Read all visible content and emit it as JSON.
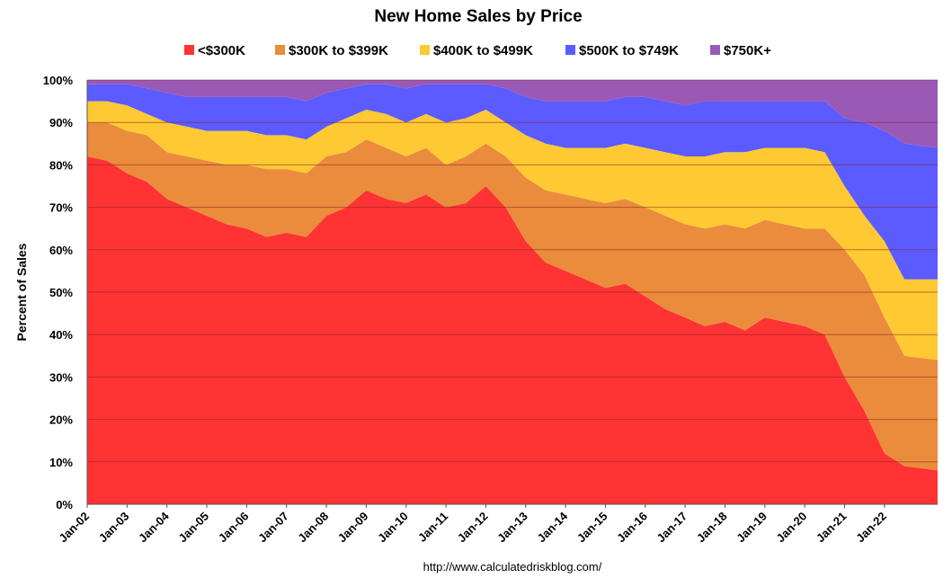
{
  "chart_data": {
    "type": "area",
    "stacked": true,
    "percent": true,
    "title": "New Home Sales by Price",
    "ylabel": "Percent of Sales",
    "xlabel": "",
    "source": "http://www.calculatedriskblog.com/",
    "ylim": [
      0,
      100
    ],
    "yticks": [
      "0%",
      "10%",
      "20%",
      "30%",
      "40%",
      "50%",
      "60%",
      "70%",
      "80%",
      "90%",
      "100%"
    ],
    "xtick_labels": [
      "Jan-02",
      "Jan-03",
      "Jan-04",
      "Jan-05",
      "Jan-06",
      "Jan-07",
      "Jan-08",
      "Jan-09",
      "Jan-10",
      "Jan-11",
      "Jan-12",
      "Jan-13",
      "Jan-14",
      "Jan-15",
      "Jan-16",
      "Jan-17",
      "Jan-18",
      "Jan-19",
      "Jan-20",
      "Jan-21",
      "Jan-22"
    ],
    "grid": true,
    "legend_position": "top",
    "x": [
      "Jan-02",
      "Jul-02",
      "Jan-03",
      "Jul-03",
      "Jan-04",
      "Jul-04",
      "Jan-05",
      "Jul-05",
      "Jan-06",
      "Jul-06",
      "Jan-07",
      "Jul-07",
      "Jan-08",
      "Jul-08",
      "Jan-09",
      "Jul-09",
      "Jan-10",
      "Jul-10",
      "Jan-11",
      "Jul-11",
      "Jan-12",
      "Jul-12",
      "Jan-13",
      "Jul-13",
      "Jan-14",
      "Jul-14",
      "Jan-15",
      "Jul-15",
      "Jan-16",
      "Jul-16",
      "Jan-17",
      "Jul-17",
      "Jan-18",
      "Jul-18",
      "Jan-19",
      "Jul-19",
      "Jan-20",
      "Jul-20",
      "Jan-21",
      "Jul-21",
      "Jan-22",
      "Jul-22",
      "Nov-22"
    ],
    "series": [
      {
        "name": "<$300K",
        "color": "#ff3333",
        "values": [
          82,
          81,
          78,
          76,
          72,
          70,
          68,
          66,
          65,
          63,
          64,
          63,
          68,
          70,
          74,
          72,
          71,
          73,
          70,
          71,
          75,
          70,
          62,
          57,
          55,
          53,
          51,
          52,
          49,
          46,
          44,
          42,
          43,
          41,
          44,
          43,
          42,
          40,
          30,
          22,
          12,
          9,
          8
        ]
      },
      {
        "name": "$300K to $399K",
        "color": "#ea8c3c",
        "values": [
          8,
          9,
          10,
          11,
          11,
          12,
          13,
          14,
          15,
          16,
          15,
          15,
          14,
          13,
          12,
          12,
          11,
          11,
          10,
          11,
          10,
          12,
          15,
          17,
          18,
          19,
          20,
          20,
          21,
          22,
          22,
          23,
          23,
          24,
          23,
          23,
          23,
          25,
          30,
          32,
          32,
          26,
          26
        ]
      },
      {
        "name": "$400K to $499K",
        "color": "#ffc933",
        "values": [
          5,
          5,
          6,
          5,
          7,
          7,
          7,
          8,
          8,
          8,
          8,
          8,
          7,
          8,
          7,
          8,
          8,
          8,
          10,
          9,
          8,
          8,
          10,
          11,
          11,
          12,
          13,
          13,
          14,
          15,
          16,
          17,
          17,
          18,
          17,
          18,
          19,
          18,
          15,
          14,
          18,
          18,
          19
        ]
      },
      {
        "name": "$500K to $749K",
        "color": "#5b5bff",
        "values": [
          4,
          4,
          5,
          6,
          7,
          7,
          8,
          8,
          8,
          9,
          9,
          9,
          8,
          7,
          6,
          7,
          8,
          7,
          9,
          8,
          6,
          8,
          9,
          10,
          11,
          11,
          11,
          11,
          12,
          12,
          12,
          13,
          12,
          12,
          11,
          11,
          11,
          12,
          16,
          22,
          26,
          32,
          31
        ]
      },
      {
        "name": "$750K+",
        "color": "#9b59b6",
        "values": [
          1,
          1,
          1,
          2,
          3,
          4,
          4,
          4,
          4,
          4,
          4,
          5,
          3,
          2,
          1,
          1,
          2,
          1,
          1,
          1,
          1,
          2,
          4,
          5,
          5,
          5,
          5,
          4,
          4,
          5,
          6,
          5,
          5,
          5,
          5,
          5,
          5,
          5,
          9,
          10,
          12,
          15,
          16
        ]
      }
    ]
  }
}
